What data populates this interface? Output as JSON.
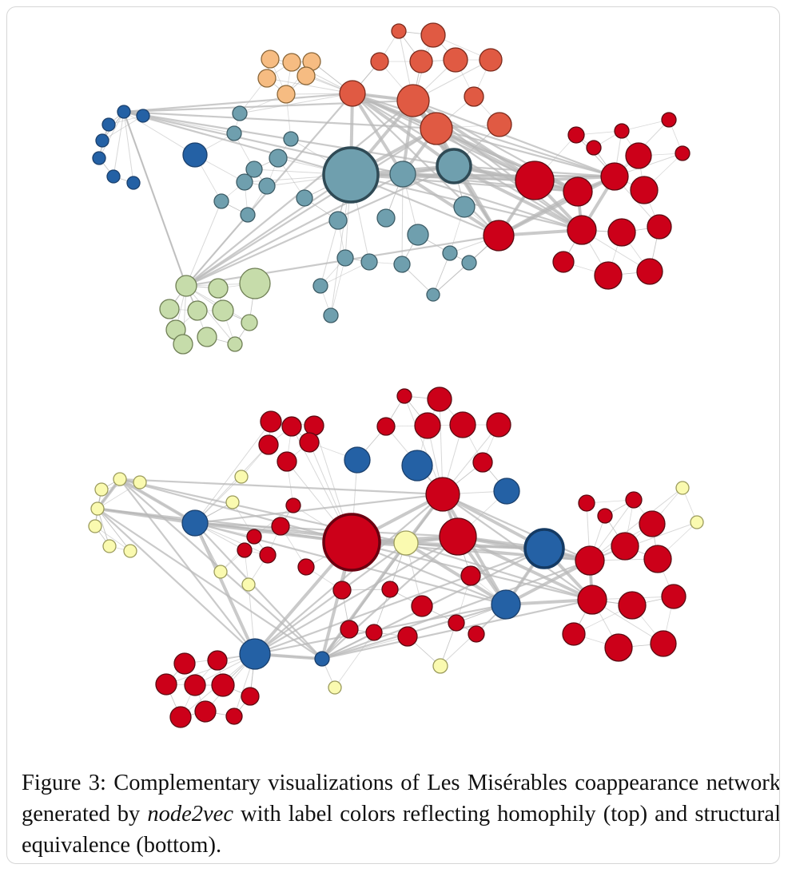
{
  "figure": {
    "caption_prefix": "Figure 3: Complementary visualizations of Les Misérables coappearance network generated by ",
    "caption_method": "node2vec",
    "caption_suffix": " with label colors reflecting homophily (top) and structural equivalence (bottom)."
  },
  "colors": {
    "teal": "#6f9fae",
    "dark_teal_stroke": "#2f4a55",
    "salmon": "#e05a43",
    "red": "#cc0019",
    "orange": "#f6bc82",
    "blue": "#2461a5",
    "green": "#c6dcaa",
    "yellow": "#fafab0",
    "edge": "#b8b8b8"
  },
  "panels": {
    "top": {
      "labeling": "homophily"
    },
    "bottom": {
      "labeling": "structural equivalence"
    }
  }
}
